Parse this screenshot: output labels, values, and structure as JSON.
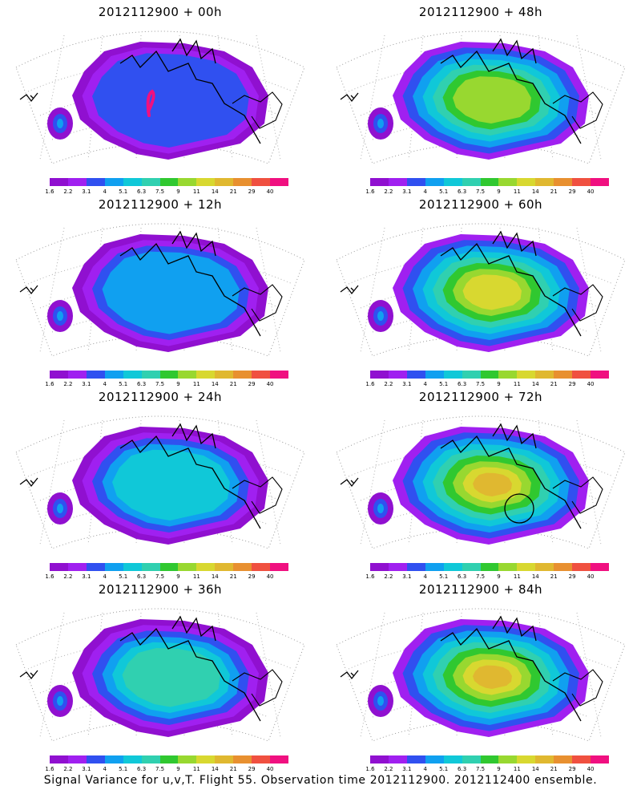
{
  "footer": "Signal Variance for u,v,T. Flight 55. Observation time 2012112900. 2012112400 ensemble.",
  "colorbar": {
    "labels": [
      "1.6",
      "2.2",
      "3.1",
      "4",
      "5.1",
      "6.3",
      "7.5",
      "9",
      "11",
      "14",
      "21",
      "29",
      "40"
    ],
    "colors": [
      "#9010d0",
      "#a020f0",
      "#3050f0",
      "#10a0f0",
      "#10c8d8",
      "#30d0b0",
      "#30c830",
      "#98d830",
      "#d8d830",
      "#e0b830",
      "#e89030",
      "#f05040",
      "#f01080"
    ]
  },
  "panels": [
    {
      "title": "2012112900 + 00h",
      "level": 0
    },
    {
      "title": "2012112900 + 48h",
      "level": 4
    },
    {
      "title": "2012112900 + 12h",
      "level": 1
    },
    {
      "title": "2012112900 + 60h",
      "level": 5
    },
    {
      "title": "2012112900 + 24h",
      "level": 2
    },
    {
      "title": "2012112900 + 72h",
      "level": 6
    },
    {
      "title": "2012112900 + 36h",
      "level": 3
    },
    {
      "title": "2012112900 + 84h",
      "level": 7
    }
  ]
}
